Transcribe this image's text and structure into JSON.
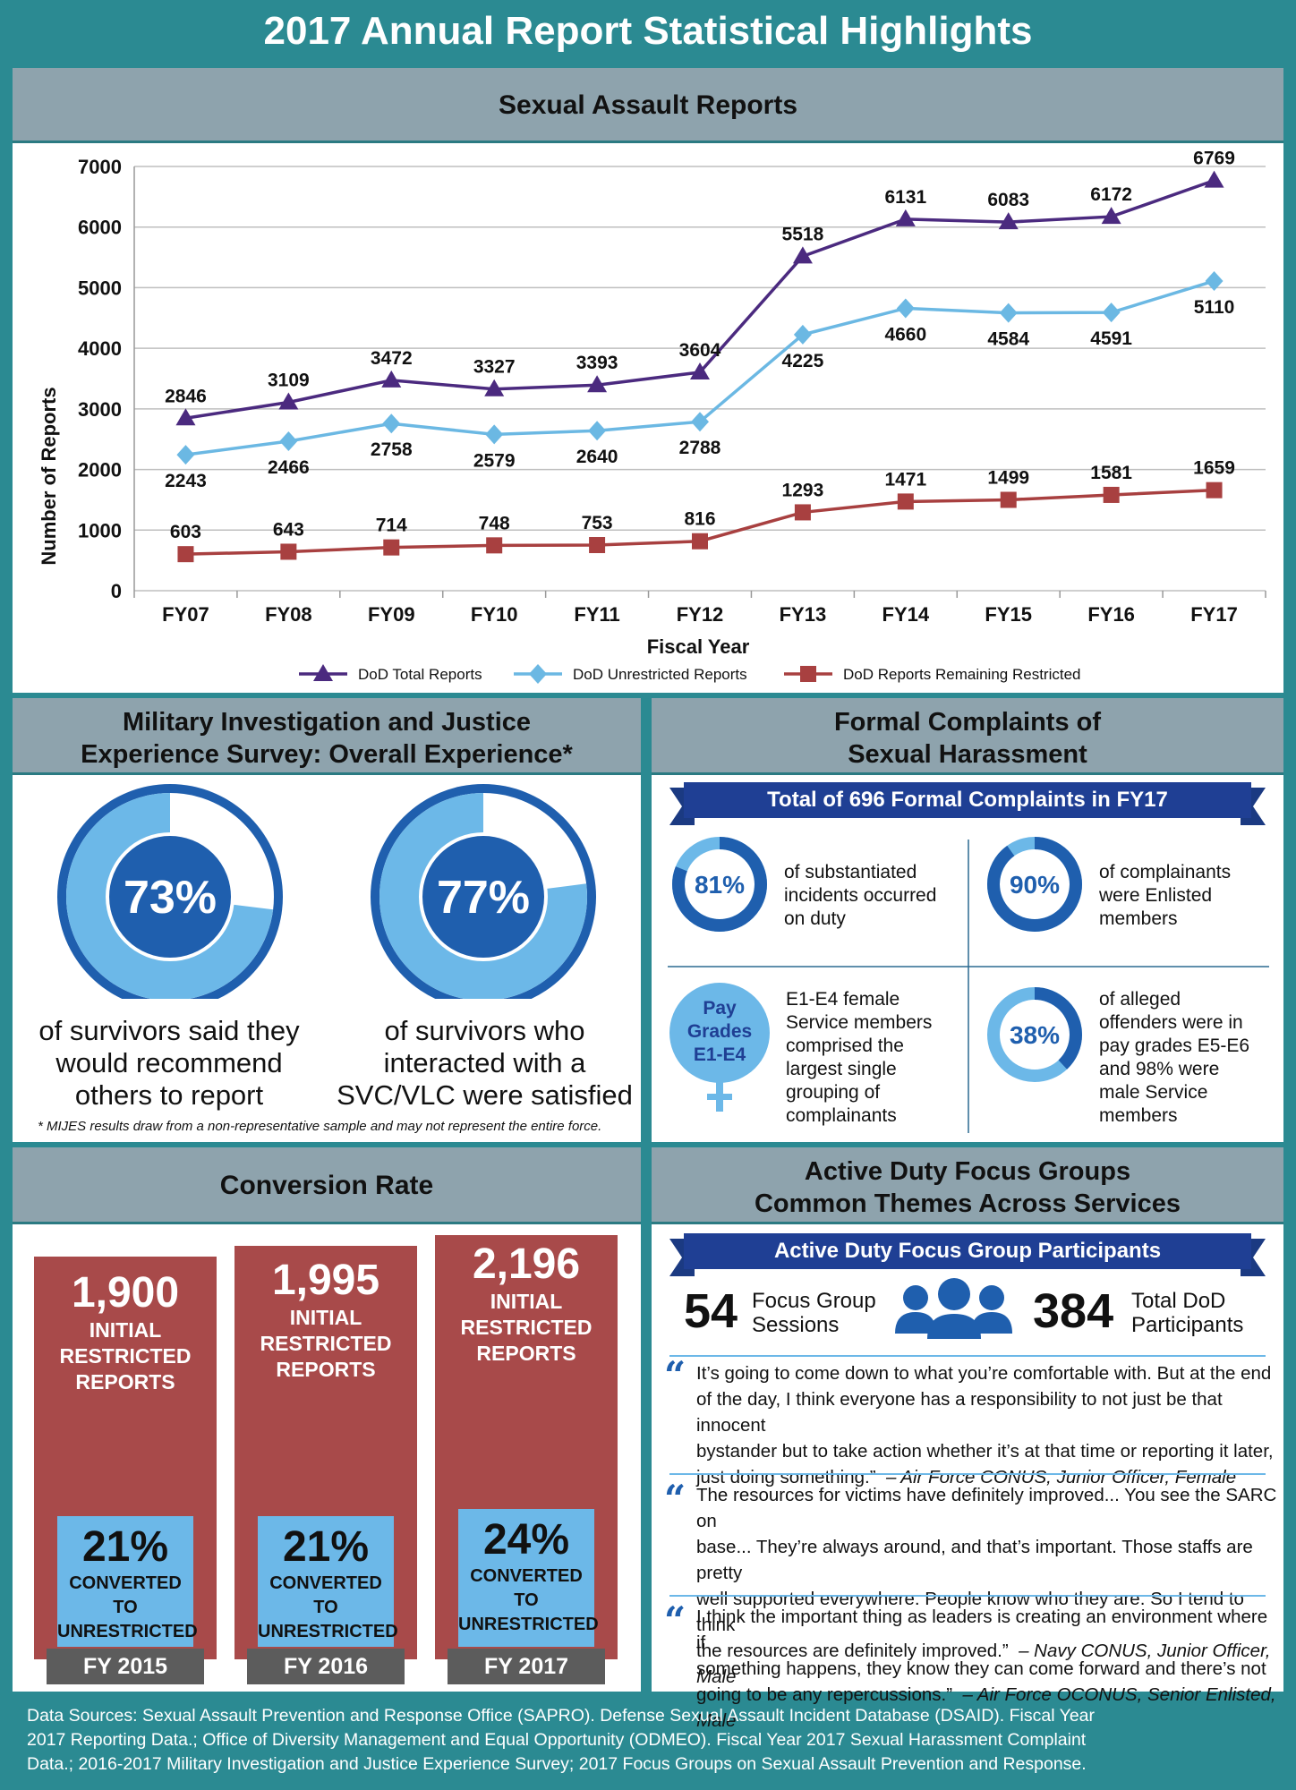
{
  "title": "2017 Annual Report Statistical Highlights",
  "chart_section_title": "Sexual Assault Reports",
  "chart_data": {
    "type": "line",
    "title": "Sexual Assault Reports",
    "xlabel": "Fiscal Year",
    "ylabel": "Number of Reports",
    "categories": [
      "FY07",
      "FY08",
      "FY09",
      "FY10",
      "FY11",
      "FY12",
      "FY13",
      "FY14",
      "FY15",
      "FY16",
      "FY17"
    ],
    "ylim": [
      0,
      7000
    ],
    "yticks": [
      0,
      1000,
      2000,
      3000,
      4000,
      5000,
      6000,
      7000
    ],
    "grid": true,
    "legend_position": "bottom",
    "series": [
      {
        "name": "DoD Total Reports",
        "color": "#4b2a7f",
        "marker": "triangle",
        "values": [
          2846,
          3109,
          3472,
          3327,
          3393,
          3604,
          5518,
          6131,
          6083,
          6172,
          6769
        ],
        "label_position": "above"
      },
      {
        "name": "DoD Unrestricted Reports",
        "color": "#6bb8e3",
        "marker": "diamond",
        "values": [
          2243,
          2466,
          2758,
          2579,
          2640,
          2788,
          4225,
          4660,
          4584,
          4591,
          5110
        ],
        "label_position": "below"
      },
      {
        "name": "DoD Reports Remaining Restricted",
        "color": "#a84040",
        "marker": "square",
        "values": [
          603,
          643,
          714,
          748,
          753,
          816,
          1293,
          1471,
          1499,
          1581,
          1659
        ],
        "label_position": "above"
      }
    ]
  },
  "mijes": {
    "title_line1": "Military Investigation and Justice",
    "title_line2": "Experience Survey: Overall Experience*",
    "ring1": {
      "percent": 73,
      "label": "73%",
      "caption1": "of survivors said they",
      "caption2": "would  recommend",
      "caption3": "others to report"
    },
    "ring2": {
      "percent": 77,
      "label": "77%",
      "caption1": "of survivors who",
      "caption2": "interacted with a",
      "caption3": "SVC/VLC were satisfied"
    },
    "footnote": "*  MIJES results draw from a non-representative sample and may not represent the entire force."
  },
  "complaints": {
    "title_line1": "Formal Complaints of",
    "title_line2": "Sexual Harassment",
    "ribbon": "Total of 696 Formal Complaints in FY17",
    "stat1": {
      "percent": 81,
      "label": "81%",
      "line1": "of substantiated",
      "line2": "incidents occurred",
      "line3": "on duty"
    },
    "stat2": {
      "percent": 90,
      "label": "90%",
      "line1": "of complainants",
      "line2": "were Enlisted",
      "line3": "members"
    },
    "stat3": {
      "line1": "Pay",
      "line2": "Grades",
      "line3": "E1-E4",
      "text1": "E1-E4  female",
      "text2": "Service members",
      "text3": "comprised the",
      "text4": "largest single",
      "text5": "grouping of",
      "text6": "complainants"
    },
    "stat4": {
      "percent": 38,
      "label": "38%",
      "line1": "of alleged",
      "line2": "offenders were in",
      "line3": "pay grades E5-E6",
      "line4": "and 98% were",
      "line5": "male Service",
      "line6": "members"
    }
  },
  "conversion": {
    "title": "Conversion Rate",
    "bars": [
      {
        "count": "1,900",
        "l1": "INITIAL",
        "l2": "RESTRICTED",
        "l3": "REPORTS",
        "pct": "21%",
        "c1": "CONVERTED TO",
        "c2": "UNRESTRICTED",
        "fy": "FY 2015"
      },
      {
        "count": "1,995",
        "l1": "INITIAL",
        "l2": "RESTRICTED",
        "l3": "REPORTS",
        "pct": "21%",
        "c1": "CONVERTED TO",
        "c2": "UNRESTRICTED",
        "fy": "FY 2016"
      },
      {
        "count": "2,196",
        "l1": "INITIAL",
        "l2": "RESTRICTED",
        "l3": "REPORTS",
        "pct": "24%",
        "c1": "CONVERTED TO",
        "c2": "UNRESTRICTED",
        "fy": "FY 2017"
      }
    ]
  },
  "focus": {
    "title_line1": "Active Duty Focus Groups",
    "title_line2": "Common Themes Across Services",
    "ribbon": "Active Duty Focus Group Participants",
    "sessions_num": "54",
    "sessions_l1": "Focus Group",
    "sessions_l2": "Sessions",
    "participants_num": "384",
    "participants_l1": "Total DoD",
    "participants_l2": "Participants",
    "q1": {
      "l1": "It’s going to come down to what you’re comfortable with. But at the end",
      "l2": "of the day, I think everyone has a responsibility to not just be that innocent",
      "l3": "bystander but to take action whether it’s at that time or reporting it later,",
      "l4": "just doing something.”",
      "attr": "– Air Force CONUS, Junior Officer, Female"
    },
    "q2": {
      "l1": "The resources for victims have definitely improved... You see the SARC on",
      "l2": "base... They’re always around, and that’s important. Those staffs are pretty",
      "l3": "well supported everywhere. People know who they are. So I tend to think",
      "l4": "the resources are definitely improved.”",
      "attr": "– Navy CONUS, Junior Officer, Male"
    },
    "q3": {
      "l1": "I think the important thing as leaders is creating an environment where if",
      "l2": "something happens, they know they can come forward and there’s not",
      "l3": "going to be any repercussions.”",
      "attr": "– Air Force OCONUS, Senior Enlisted, Male"
    }
  },
  "footer": {
    "l1": "Data Sources: Sexual Assault Prevention and Response Office (SAPRO). Defense Sexual Assault Incident Database (DSAID). Fiscal Year",
    "l2": "2017 Reporting Data.; Office of Diversity Management and Equal Opportunity (ODMEO). Fiscal Year 2017 Sexual Harassment Complaint",
    "l3": "Data.; 2016-2017 Military Investigation and Justice Experience Survey; 2017 Focus Groups on Sexual Assault Prevention and Response."
  }
}
